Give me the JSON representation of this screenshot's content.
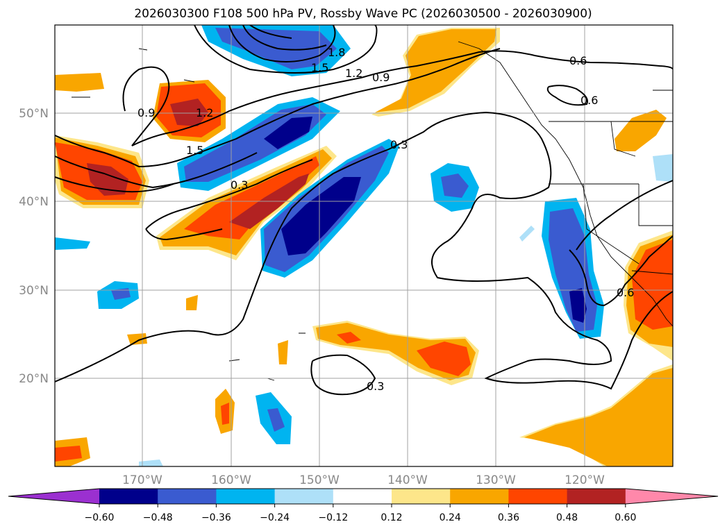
{
  "title": "2026030300 F108 500 hPa PV, Rossby Wave PC (2026030500 - 2026030900)",
  "map": {
    "lat_labels": [
      "50°N",
      "40°N",
      "30°N",
      "20°N"
    ],
    "lon_labels": [
      "170°W",
      "160°W",
      "150°W",
      "140°W",
      "130°W",
      "120°W"
    ]
  },
  "colorbar": {
    "ticks": [
      "−0.60",
      "−0.48",
      "−0.36",
      "−0.24",
      "−0.12",
      "0.12",
      "0.24",
      "0.36",
      "0.48",
      "0.60"
    ],
    "colors": [
      "#9b30d0",
      "#00008b",
      "#3a5bd0",
      "#00b4f0",
      "#aee0f8",
      "#ffffff",
      "#fde68a",
      "#f9a600",
      "#ff4500",
      "#b22222",
      "#ff88aa"
    ]
  },
  "contour_labels": [
    "1.8",
    "1.5",
    "1.2",
    "0.9",
    "0.6",
    "0.9",
    "1.2",
    "1.5",
    "0.3",
    "0.3",
    "0.3",
    "0.6",
    "0.6"
  ],
  "colors": {
    "darkblue": "#00008b",
    "blue": "#3a5bd0",
    "sky": "#00b4f0",
    "lightblue": "#aee0f8",
    "yellow": "#fde68a",
    "orange": "#f9a600",
    "redorange": "#ff4500",
    "darkred": "#b22222"
  }
}
